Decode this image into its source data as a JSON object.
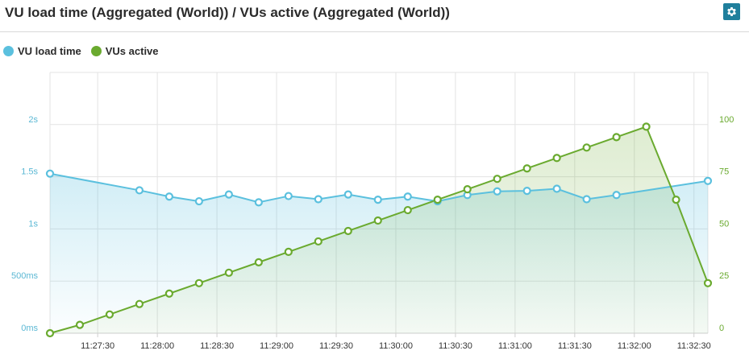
{
  "header": {
    "title": "VU load time (Aggregated (World)) / VUs active (Aggregated (World))",
    "settings_icon": "gear-icon"
  },
  "colors": {
    "load_time": "#5bc0de",
    "vus_active": "#6aaa2f",
    "grid": "#e3e3e3",
    "left_axis_text": "#5bb8d4",
    "right_axis_text": "#6aaa2f",
    "x_axis_text": "#333333"
  },
  "chart_data": {
    "type": "line",
    "x_unit": "time",
    "x_tick_labels": [
      "11:27:30",
      "11:28:00",
      "11:28:30",
      "11:29:00",
      "11:29:30",
      "11:30:00",
      "11:30:30",
      "11:31:00",
      "11:31:30",
      "11:32:00",
      "11:32:30"
    ],
    "x_range": [
      "11:27:06",
      "11:32:37"
    ],
    "y_left": {
      "label": "",
      "unit": "ms",
      "range": [
        0,
        2500
      ],
      "ticks": [
        0,
        500,
        1000,
        1500,
        2000
      ],
      "tick_labels": [
        "0ms",
        "500ms",
        "1s",
        "1.5s",
        "2s"
      ]
    },
    "y_right": {
      "label": "",
      "range": [
        0,
        125
      ],
      "ticks": [
        0,
        25,
        50,
        75,
        100
      ],
      "tick_labels": [
        "0",
        "25",
        "50",
        "75",
        "100"
      ]
    },
    "grid": true,
    "legend_position": "top-left",
    "series": [
      {
        "name": "VU load time",
        "axis": "left",
        "style": "line-area",
        "points": [
          [
            "11:27:06",
            1530
          ],
          [
            "11:27:51",
            1370
          ],
          [
            "11:28:06",
            1310
          ],
          [
            "11:28:21",
            1265
          ],
          [
            "11:28:36",
            1330
          ],
          [
            "11:28:51",
            1255
          ],
          [
            "11:29:06",
            1315
          ],
          [
            "11:29:21",
            1285
          ],
          [
            "11:29:36",
            1330
          ],
          [
            "11:29:51",
            1280
          ],
          [
            "11:30:06",
            1310
          ],
          [
            "11:30:21",
            1265
          ],
          [
            "11:30:36",
            1325
          ],
          [
            "11:30:51",
            1360
          ],
          [
            "11:31:06",
            1365
          ],
          [
            "11:31:21",
            1385
          ],
          [
            "11:31:36",
            1285
          ],
          [
            "11:31:51",
            1325
          ],
          [
            "11:32:37",
            1460
          ]
        ]
      },
      {
        "name": "VUs active",
        "axis": "right",
        "style": "line-area",
        "points": [
          [
            "11:27:06",
            0
          ],
          [
            "11:27:21",
            4
          ],
          [
            "11:27:36",
            9
          ],
          [
            "11:27:51",
            14
          ],
          [
            "11:28:06",
            19
          ],
          [
            "11:28:21",
            24
          ],
          [
            "11:28:36",
            29
          ],
          [
            "11:28:51",
            34
          ],
          [
            "11:29:06",
            39
          ],
          [
            "11:29:21",
            44
          ],
          [
            "11:29:36",
            49
          ],
          [
            "11:29:51",
            54
          ],
          [
            "11:30:06",
            59
          ],
          [
            "11:30:21",
            64
          ],
          [
            "11:30:36",
            69
          ],
          [
            "11:30:51",
            74
          ],
          [
            "11:31:06",
            79
          ],
          [
            "11:31:21",
            84
          ],
          [
            "11:31:36",
            89
          ],
          [
            "11:31:51",
            94
          ],
          [
            "11:32:06",
            99
          ],
          [
            "11:32:21",
            64
          ],
          [
            "11:32:37",
            24
          ]
        ]
      }
    ]
  }
}
